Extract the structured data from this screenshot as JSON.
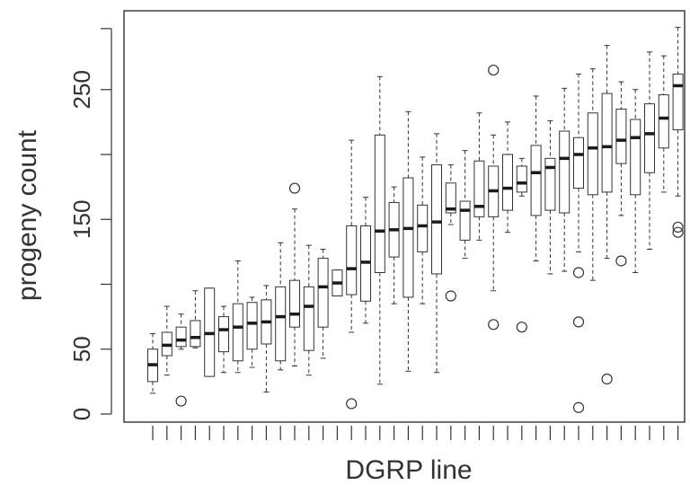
{
  "chart_data": {
    "type": "box",
    "title": "",
    "xlabel": "DGRP line",
    "ylabel": "progeny count",
    "yticks": [
      0,
      50,
      150,
      250
    ],
    "ylim": [
      -5,
      310
    ],
    "grid": false,
    "legend": "none",
    "colors": {
      "box_fill": "#ffffff",
      "stroke": "#333333",
      "median": "#1a1a1a"
    },
    "boxes": [
      {
        "low": 16,
        "q1": 25,
        "median": 38,
        "q3": 50,
        "high": 62,
        "outliers": []
      },
      {
        "low": 30,
        "q1": 45,
        "median": 53,
        "q3": 63,
        "high": 83,
        "outliers": []
      },
      {
        "low": 50,
        "q1": 52,
        "median": 57,
        "q3": 67,
        "high": 77,
        "outliers": [
          10
        ]
      },
      {
        "low": 51,
        "q1": 52,
        "median": 59,
        "q3": 72,
        "high": 95,
        "outliers": []
      },
      {
        "low": 29,
        "q1": 29,
        "median": 62,
        "q3": 97,
        "high": 97,
        "outliers": []
      },
      {
        "low": 32,
        "q1": 48,
        "median": 65,
        "q3": 75,
        "high": 83,
        "outliers": []
      },
      {
        "low": 32,
        "q1": 41,
        "median": 67,
        "q3": 85,
        "high": 118,
        "outliers": []
      },
      {
        "low": 36,
        "q1": 50,
        "median": 70,
        "q3": 86,
        "high": 90,
        "outliers": []
      },
      {
        "low": 17,
        "q1": 54,
        "median": 71,
        "q3": 88,
        "high": 99,
        "outliers": []
      },
      {
        "low": 34,
        "q1": 41,
        "median": 75,
        "q3": 98,
        "high": 132,
        "outliers": []
      },
      {
        "low": 37,
        "q1": 67,
        "median": 77,
        "q3": 103,
        "high": 158,
        "outliers": [
          174
        ]
      },
      {
        "low": 30,
        "q1": 49,
        "median": 83,
        "q3": 98,
        "high": 130,
        "outliers": []
      },
      {
        "low": 43,
        "q1": 67,
        "median": 98,
        "q3": 120,
        "high": 127,
        "outliers": []
      },
      {
        "low": 91,
        "q1": 91,
        "median": 101,
        "q3": 111,
        "high": 111,
        "outliers": []
      },
      {
        "low": 63,
        "q1": 92,
        "median": 112,
        "q3": 145,
        "high": 211,
        "outliers": [
          8
        ]
      },
      {
        "low": 70,
        "q1": 87,
        "median": 117,
        "q3": 145,
        "high": 167,
        "outliers": []
      },
      {
        "low": 23,
        "q1": 109,
        "median": 141,
        "q3": 215,
        "high": 260,
        "outliers": []
      },
      {
        "low": 85,
        "q1": 121,
        "median": 142,
        "q3": 163,
        "high": 175,
        "outliers": []
      },
      {
        "low": 33,
        "q1": 90,
        "median": 143,
        "q3": 182,
        "high": 233,
        "outliers": []
      },
      {
        "low": 85,
        "q1": 125,
        "median": 145,
        "q3": 161,
        "high": 198,
        "outliers": []
      },
      {
        "low": 32,
        "q1": 108,
        "median": 148,
        "q3": 192,
        "high": 216,
        "outliers": []
      },
      {
        "low": 146,
        "q1": 155,
        "median": 158,
        "q3": 178,
        "high": 192,
        "outliers": [
          91
        ]
      },
      {
        "low": 120,
        "q1": 134,
        "median": 157,
        "q3": 164,
        "high": 203,
        "outliers": []
      },
      {
        "low": 134,
        "q1": 152,
        "median": 160,
        "q3": 195,
        "high": 232,
        "outliers": []
      },
      {
        "low": 95,
        "q1": 152,
        "median": 172,
        "q3": 191,
        "high": 215,
        "outliers": [
          265,
          69
        ]
      },
      {
        "low": 140,
        "q1": 157,
        "median": 174,
        "q3": 200,
        "high": 225,
        "outliers": []
      },
      {
        "low": 168,
        "q1": 171,
        "median": 178,
        "q3": 191,
        "high": 197,
        "outliers": [
          67
        ]
      },
      {
        "low": 118,
        "q1": 153,
        "median": 186,
        "q3": 207,
        "high": 245,
        "outliers": []
      },
      {
        "low": 108,
        "q1": 157,
        "median": 190,
        "q3": 197,
        "high": 226,
        "outliers": []
      },
      {
        "low": 110,
        "q1": 155,
        "median": 197,
        "q3": 218,
        "high": 251,
        "outliers": []
      },
      {
        "low": 125,
        "q1": 174,
        "median": 200,
        "q3": 213,
        "high": 262,
        "outliers": [
          109,
          71,
          5
        ]
      },
      {
        "low": 103,
        "q1": 169,
        "median": 205,
        "q3": 232,
        "high": 266,
        "outliers": []
      },
      {
        "low": 120,
        "q1": 171,
        "median": 206,
        "q3": 247,
        "high": 284,
        "outliers": [
          27
        ]
      },
      {
        "low": 153,
        "q1": 193,
        "median": 211,
        "q3": 235,
        "high": 256,
        "outliers": [
          118
        ]
      },
      {
        "low": 109,
        "q1": 169,
        "median": 213,
        "q3": 227,
        "high": 250,
        "outliers": []
      },
      {
        "low": 127,
        "q1": 186,
        "median": 216,
        "q3": 239,
        "high": 279,
        "outliers": []
      },
      {
        "low": 171,
        "q1": 205,
        "median": 228,
        "q3": 246,
        "high": 276,
        "outliers": []
      },
      {
        "low": 168,
        "q1": 219,
        "median": 253,
        "q3": 262,
        "high": 298,
        "outliers": [
          144,
          140
        ]
      }
    ]
  }
}
